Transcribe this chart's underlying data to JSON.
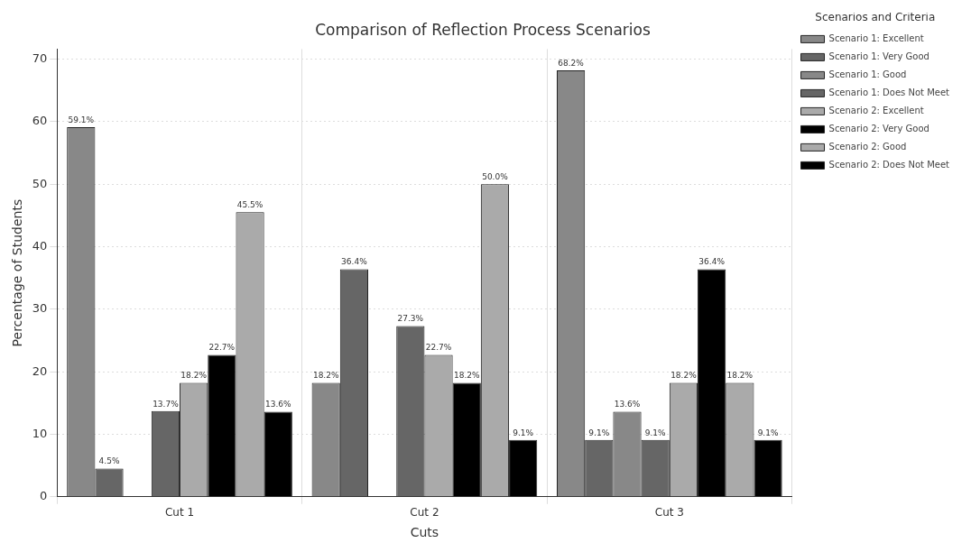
{
  "chart_data": {
    "type": "bar",
    "title": "Comparison of Reflection Process Scenarios",
    "xlabel": "Cuts",
    "ylabel": "Percentage of Students",
    "legend_title": "Scenarios and Criteria",
    "categories": [
      "Cut 1",
      "Cut 2",
      "Cut 3"
    ],
    "series": [
      {
        "name": "Scenario 1: Excellent",
        "color": "#888888",
        "values": [
          59.1,
          18.2,
          68.2
        ],
        "value_labels": [
          "59.1%",
          "18.2%",
          "68.2%"
        ]
      },
      {
        "name": "Scenario 1: Very Good",
        "color": "#666666",
        "values": [
          4.5,
          36.4,
          9.1
        ],
        "value_labels": [
          "4.5%",
          "36.4%",
          "9.1%"
        ]
      },
      {
        "name": "Scenario 1: Good",
        "color": "#888888",
        "values": [
          null,
          null,
          13.6
        ],
        "value_labels": [
          null,
          null,
          "13.6%"
        ]
      },
      {
        "name": "Scenario 1: Does Not Meet",
        "color": "#666666",
        "values": [
          13.7,
          27.3,
          9.1
        ],
        "value_labels": [
          "13.7%",
          "27.3%",
          "9.1%"
        ]
      },
      {
        "name": "Scenario 2: Excellent",
        "color": "#aaaaaa",
        "values": [
          18.2,
          22.7,
          18.2
        ],
        "value_labels": [
          "18.2%",
          "22.7%",
          "18.2%"
        ]
      },
      {
        "name": "Scenario 2: Very Good",
        "color": "#000000",
        "values": [
          22.7,
          18.2,
          36.4
        ],
        "value_labels": [
          "22.7%",
          "18.2%",
          "36.4%"
        ]
      },
      {
        "name": "Scenario 2: Good",
        "color": "#aaaaaa",
        "values": [
          45.5,
          50.0,
          18.2
        ],
        "value_labels": [
          "45.5%",
          "50.0%",
          "18.2%"
        ]
      },
      {
        "name": "Scenario 2: Does Not Meet",
        "color": "#000000",
        "values": [
          13.6,
          9.1,
          9.1
        ],
        "value_labels": [
          "13.6%",
          "9.1%",
          "9.1%"
        ]
      }
    ],
    "ylim": [
      0,
      71.6
    ],
    "yticks": [
      0,
      10,
      20,
      30,
      40,
      50,
      60,
      70
    ],
    "grid": true,
    "legend": "top right"
  }
}
